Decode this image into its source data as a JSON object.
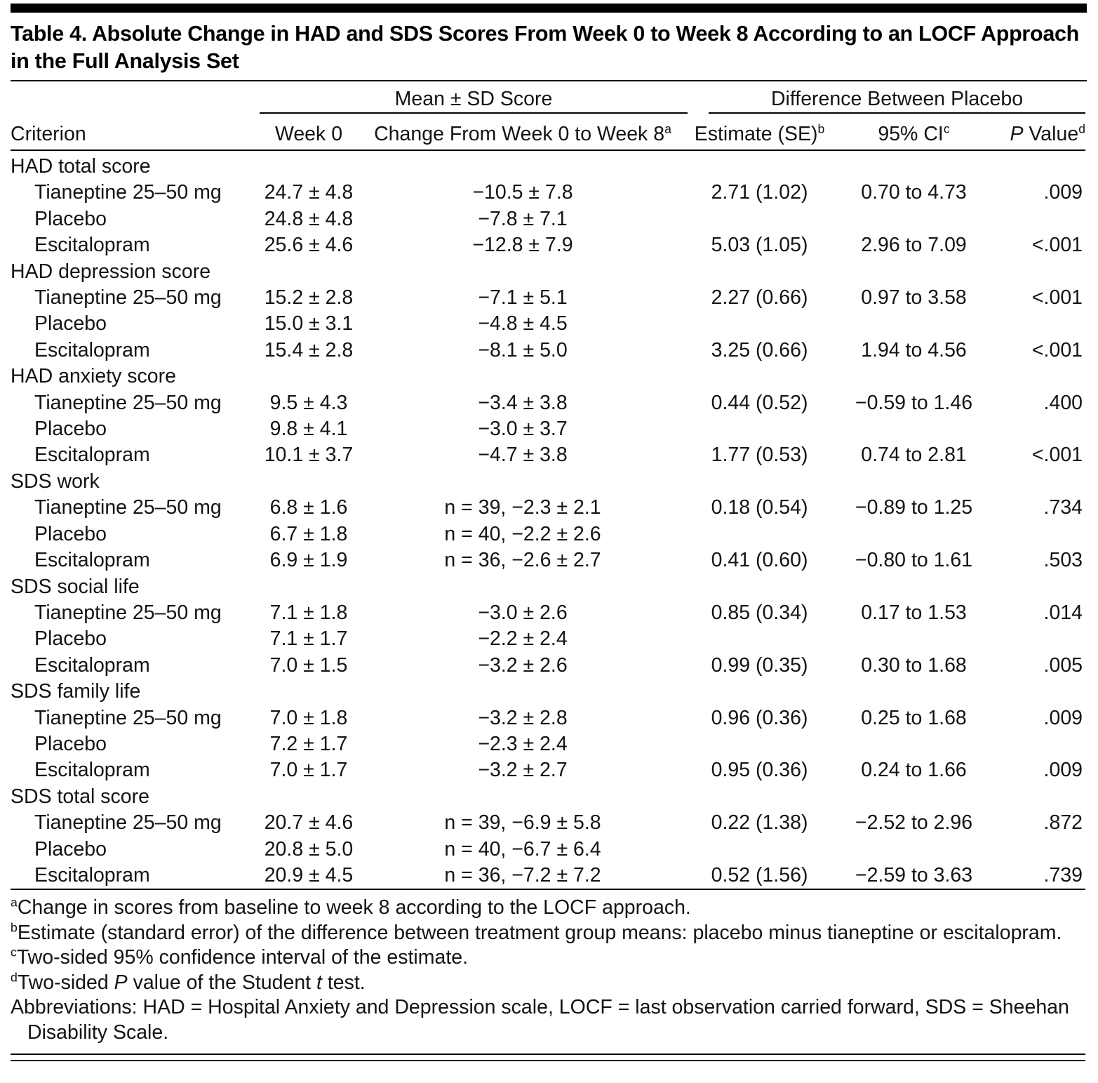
{
  "page": {
    "title": "Table 4. Absolute Change in HAD and SDS Scores From Week 0 to Week 8 According to an LOCF Approach in the Full Analysis Set"
  },
  "table": {
    "spanners": [
      {
        "label": "Mean ± SD Score"
      },
      {
        "label": "Difference Between Placebo"
      }
    ],
    "columns": [
      {
        "label": "Criterion"
      },
      {
        "label": "Week 0"
      },
      {
        "label": "Change From Week 0 to Week 8",
        "sup": "a"
      },
      {
        "label": "Estimate (SE)",
        "sup": "b"
      },
      {
        "label": "95% CI",
        "sup": "c"
      },
      {
        "pre_italic": "P",
        "label": " Value",
        "sup": "d"
      }
    ],
    "groups": [
      {
        "label": "HAD total score",
        "rows": [
          {
            "criterion": "Tianeptine 25–50 mg",
            "week0": "24.7 ± 4.8",
            "change": "−10.5 ± 7.8",
            "estimate": "2.71 (1.02)",
            "ci": "0.70 to 4.73",
            "p": ".009"
          },
          {
            "criterion": "Placebo",
            "week0": "24.8 ± 4.8",
            "change": "−7.8 ± 7.1",
            "estimate": "",
            "ci": "",
            "p": ""
          },
          {
            "criterion": "Escitalopram",
            "week0": "25.6 ± 4.6",
            "change": "−12.8 ± 7.9",
            "estimate": "5.03 (1.05)",
            "ci": "2.96 to 7.09",
            "p": "<.001"
          }
        ]
      },
      {
        "label": "HAD depression score",
        "rows": [
          {
            "criterion": "Tianeptine 25–50 mg",
            "week0": "15.2 ± 2.8",
            "change": "−7.1 ± 5.1",
            "estimate": "2.27 (0.66)",
            "ci": "0.97 to 3.58",
            "p": "<.001"
          },
          {
            "criterion": "Placebo",
            "week0": "15.0 ± 3.1",
            "change": "−4.8 ± 4.5",
            "estimate": "",
            "ci": "",
            "p": ""
          },
          {
            "criterion": "Escitalopram",
            "week0": "15.4 ± 2.8",
            "change": "−8.1 ± 5.0",
            "estimate": "3.25 (0.66)",
            "ci": "1.94 to 4.56",
            "p": "<.001"
          }
        ]
      },
      {
        "label": "HAD anxiety score",
        "rows": [
          {
            "criterion": "Tianeptine 25–50 mg",
            "week0": "9.5 ± 4.3",
            "change": "−3.4 ± 3.8",
            "estimate": "0.44 (0.52)",
            "ci": "−0.59 to 1.46",
            "p": ".400"
          },
          {
            "criterion": "Placebo",
            "week0": "9.8 ± 4.1",
            "change": "−3.0 ± 3.7",
            "estimate": "",
            "ci": "",
            "p": ""
          },
          {
            "criterion": "Escitalopram",
            "week0": "10.1 ± 3.7",
            "change": "−4.7 ± 3.8",
            "estimate": "1.77 (0.53)",
            "ci": "0.74 to 2.81",
            "p": "<.001"
          }
        ]
      },
      {
        "label": "SDS work",
        "rows": [
          {
            "criterion": "Tianeptine 25–50 mg",
            "week0": "6.8 ± 1.6",
            "change": "n = 39, −2.3 ± 2.1",
            "estimate": "0.18 (0.54)",
            "ci": "−0.89 to 1.25",
            "p": ".734"
          },
          {
            "criterion": "Placebo",
            "week0": "6.7 ± 1.8",
            "change": "n = 40, −2.2 ± 2.6",
            "estimate": "",
            "ci": "",
            "p": ""
          },
          {
            "criterion": "Escitalopram",
            "week0": "6.9 ± 1.9",
            "change": "n = 36, −2.6 ± 2.7",
            "estimate": "0.41 (0.60)",
            "ci": "−0.80 to 1.61",
            "p": ".503"
          }
        ]
      },
      {
        "label": "SDS social life",
        "rows": [
          {
            "criterion": "Tianeptine 25–50 mg",
            "week0": "7.1 ± 1.8",
            "change": "−3.0 ± 2.6",
            "estimate": "0.85 (0.34)",
            "ci": "0.17 to 1.53",
            "p": ".014"
          },
          {
            "criterion": "Placebo",
            "week0": "7.1 ± 1.7",
            "change": "−2.2 ± 2.4",
            "estimate": "",
            "ci": "",
            "p": ""
          },
          {
            "criterion": "Escitalopram",
            "week0": "7.0 ± 1.5",
            "change": "−3.2 ± 2.6",
            "estimate": "0.99 (0.35)",
            "ci": "0.30 to 1.68",
            "p": ".005"
          }
        ]
      },
      {
        "label": "SDS family life",
        "rows": [
          {
            "criterion": "Tianeptine 25–50 mg",
            "week0": "7.0 ± 1.8",
            "change": "−3.2 ± 2.8",
            "estimate": "0.96 (0.36)",
            "ci": "0.25 to 1.68",
            "p": ".009"
          },
          {
            "criterion": "Placebo",
            "week0": "7.2 ± 1.7",
            "change": "−2.3 ± 2.4",
            "estimate": "",
            "ci": "",
            "p": ""
          },
          {
            "criterion": "Escitalopram",
            "week0": "7.0 ± 1.7",
            "change": "−3.2 ± 2.7",
            "estimate": "0.95 (0.36)",
            "ci": "0.24 to 1.66",
            "p": ".009"
          }
        ]
      },
      {
        "label": "SDS total score",
        "rows": [
          {
            "criterion": "Tianeptine 25–50 mg",
            "week0": "20.7 ± 4.6",
            "change": "n = 39, −6.9 ± 5.8",
            "estimate": "0.22 (1.38)",
            "ci": "−2.52 to 2.96",
            "p": ".872"
          },
          {
            "criterion": "Placebo",
            "week0": "20.8 ± 5.0",
            "change": "n = 40, −6.7 ± 6.4",
            "estimate": "",
            "ci": "",
            "p": ""
          },
          {
            "criterion": "Escitalopram",
            "week0": "20.9 ± 4.5",
            "change": "n = 36, −7.2 ± 7.2",
            "estimate": "0.52 (1.56)",
            "ci": "−2.59 to 3.63",
            "p": ".739"
          }
        ]
      }
    ]
  },
  "footnotes": [
    {
      "sup": "a",
      "parts": [
        {
          "text": "Change in scores from baseline to week 8 according to the LOCF approach."
        }
      ]
    },
    {
      "sup": "b",
      "parts": [
        {
          "text": "Estimate (standard error) of the difference between treatment group means: placebo minus tianeptine or escitalopram."
        }
      ]
    },
    {
      "sup": "c",
      "parts": [
        {
          "text": "Two-sided 95% confidence interval of the estimate."
        }
      ]
    },
    {
      "sup": "d",
      "parts": [
        {
          "text": "Two-sided "
        },
        {
          "text": "P",
          "italic": true
        },
        {
          "text": " value of the Student "
        },
        {
          "text": "t",
          "italic": true
        },
        {
          "text": " test."
        }
      ]
    },
    {
      "parts": [
        {
          "text": "Abbreviations: HAD = Hospital Anxiety and Depression scale, LOCF = last observation carried forward, SDS = Sheehan Disability Scale."
        }
      ]
    }
  ]
}
